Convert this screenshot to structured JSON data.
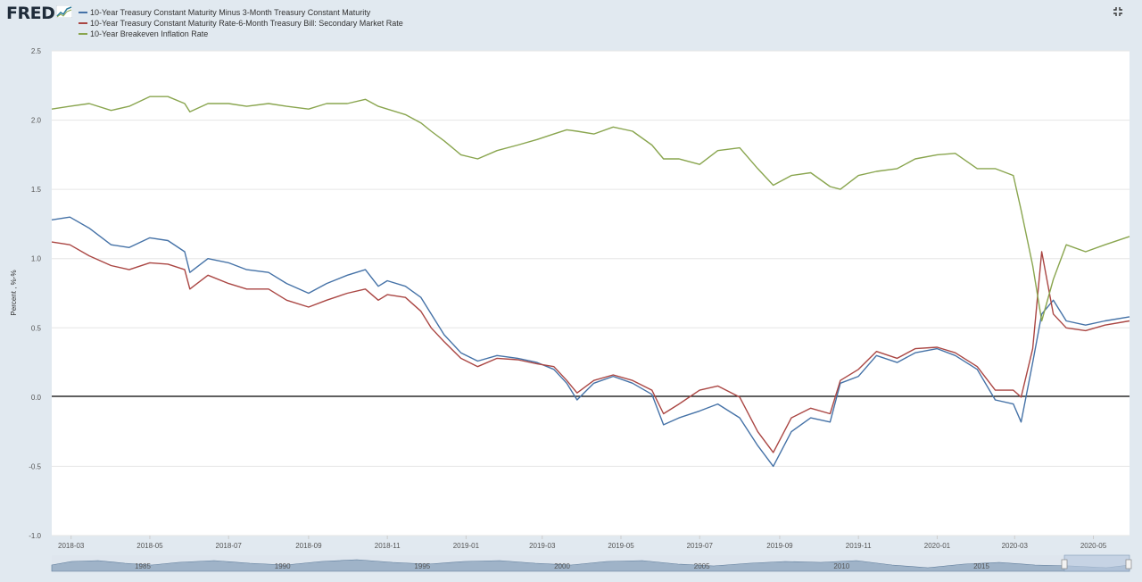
{
  "header": {
    "logo_text": "FRED",
    "logo_icon": "line-chart-icon",
    "expand_icon": "expand-icon"
  },
  "navigator": {
    "tick_labels": [
      "1985",
      "1990",
      "1995",
      "2000",
      "2005",
      "2010",
      "2015"
    ]
  },
  "chart_data": {
    "type": "line",
    "title": "",
    "xlabel": "",
    "ylabel": "Percent , %-%",
    "ylim": [
      -1.0,
      2.5
    ],
    "y_ticks": [
      "2.5",
      "2.0",
      "1.5",
      "1.0",
      "0.5",
      "0.0",
      "-0.5",
      "-1.0"
    ],
    "x_ticks": [
      "2018-03",
      "2018-05",
      "2018-07",
      "2018-09",
      "2018-11",
      "2019-01",
      "2019-03",
      "2019-05",
      "2019-07",
      "2019-09",
      "2019-11",
      "2020-01",
      "2020-03",
      "2020-05"
    ],
    "x_range": [
      "2018-02-14",
      "2020-05-29"
    ],
    "grid": true,
    "legend_position": "top-left",
    "series": [
      {
        "name": "10-Year Treasury Constant Maturity Minus 3-Month Treasury Constant Maturity",
        "color": "#4572a7",
        "points": [
          [
            "2018-02-14",
            1.28
          ],
          [
            "2018-02-28",
            1.3
          ],
          [
            "2018-03-15",
            1.22
          ],
          [
            "2018-04-01",
            1.1
          ],
          [
            "2018-04-15",
            1.08
          ],
          [
            "2018-05-01",
            1.15
          ],
          [
            "2018-05-15",
            1.13
          ],
          [
            "2018-05-28",
            1.05
          ],
          [
            "2018-06-01",
            0.9
          ],
          [
            "2018-06-15",
            1.0
          ],
          [
            "2018-07-01",
            0.97
          ],
          [
            "2018-07-15",
            0.92
          ],
          [
            "2018-08-01",
            0.9
          ],
          [
            "2018-08-15",
            0.82
          ],
          [
            "2018-09-01",
            0.75
          ],
          [
            "2018-09-15",
            0.82
          ],
          [
            "2018-10-01",
            0.88
          ],
          [
            "2018-10-15",
            0.92
          ],
          [
            "2018-10-25",
            0.8
          ],
          [
            "2018-11-01",
            0.84
          ],
          [
            "2018-11-15",
            0.8
          ],
          [
            "2018-11-27",
            0.72
          ],
          [
            "2018-12-05",
            0.6
          ],
          [
            "2018-12-15",
            0.45
          ],
          [
            "2018-12-28",
            0.32
          ],
          [
            "2019-01-10",
            0.26
          ],
          [
            "2019-01-25",
            0.3
          ],
          [
            "2019-02-10",
            0.28
          ],
          [
            "2019-02-25",
            0.25
          ],
          [
            "2019-03-10",
            0.2
          ],
          [
            "2019-03-20",
            0.1
          ],
          [
            "2019-03-28",
            -0.02
          ],
          [
            "2019-04-10",
            0.1
          ],
          [
            "2019-04-25",
            0.15
          ],
          [
            "2019-05-10",
            0.1
          ],
          [
            "2019-05-25",
            0.02
          ],
          [
            "2019-06-03",
            -0.2
          ],
          [
            "2019-06-15",
            -0.15
          ],
          [
            "2019-07-01",
            -0.1
          ],
          [
            "2019-07-15",
            -0.05
          ],
          [
            "2019-08-01",
            -0.15
          ],
          [
            "2019-08-15",
            -0.35
          ],
          [
            "2019-08-27",
            -0.5
          ],
          [
            "2019-09-10",
            -0.25
          ],
          [
            "2019-09-25",
            -0.15
          ],
          [
            "2019-10-10",
            -0.18
          ],
          [
            "2019-10-18",
            0.1
          ],
          [
            "2019-11-01",
            0.15
          ],
          [
            "2019-11-15",
            0.3
          ],
          [
            "2019-12-01",
            0.25
          ],
          [
            "2019-12-15",
            0.32
          ],
          [
            "2020-01-01",
            0.35
          ],
          [
            "2020-01-15",
            0.3
          ],
          [
            "2020-02-01",
            0.2
          ],
          [
            "2020-02-15",
            -0.02
          ],
          [
            "2020-02-29",
            -0.05
          ],
          [
            "2020-03-06",
            -0.18
          ],
          [
            "2020-03-15",
            0.25
          ],
          [
            "2020-03-22",
            0.6
          ],
          [
            "2020-03-31",
            0.7
          ],
          [
            "2020-04-10",
            0.55
          ],
          [
            "2020-04-25",
            0.52
          ],
          [
            "2020-05-10",
            0.55
          ],
          [
            "2020-05-29",
            0.58
          ]
        ]
      },
      {
        "name": "10-Year Treasury Constant Maturity Rate-6-Month Treasury Bill: Secondary Market Rate",
        "color": "#aa4643",
        "points": [
          [
            "2018-02-14",
            1.12
          ],
          [
            "2018-02-28",
            1.1
          ],
          [
            "2018-03-15",
            1.02
          ],
          [
            "2018-04-01",
            0.95
          ],
          [
            "2018-04-15",
            0.92
          ],
          [
            "2018-05-01",
            0.97
          ],
          [
            "2018-05-15",
            0.96
          ],
          [
            "2018-05-28",
            0.92
          ],
          [
            "2018-06-01",
            0.78
          ],
          [
            "2018-06-15",
            0.88
          ],
          [
            "2018-07-01",
            0.82
          ],
          [
            "2018-07-15",
            0.78
          ],
          [
            "2018-08-01",
            0.78
          ],
          [
            "2018-08-15",
            0.7
          ],
          [
            "2018-09-01",
            0.65
          ],
          [
            "2018-09-15",
            0.7
          ],
          [
            "2018-10-01",
            0.75
          ],
          [
            "2018-10-15",
            0.78
          ],
          [
            "2018-10-25",
            0.7
          ],
          [
            "2018-11-01",
            0.74
          ],
          [
            "2018-11-15",
            0.72
          ],
          [
            "2018-11-27",
            0.62
          ],
          [
            "2018-12-05",
            0.5
          ],
          [
            "2018-12-15",
            0.4
          ],
          [
            "2018-12-28",
            0.28
          ],
          [
            "2019-01-10",
            0.22
          ],
          [
            "2019-01-25",
            0.28
          ],
          [
            "2019-02-10",
            0.27
          ],
          [
            "2019-02-25",
            0.24
          ],
          [
            "2019-03-10",
            0.22
          ],
          [
            "2019-03-20",
            0.12
          ],
          [
            "2019-03-28",
            0.03
          ],
          [
            "2019-04-10",
            0.12
          ],
          [
            "2019-04-25",
            0.16
          ],
          [
            "2019-05-10",
            0.12
          ],
          [
            "2019-05-25",
            0.05
          ],
          [
            "2019-06-03",
            -0.12
          ],
          [
            "2019-06-15",
            -0.05
          ],
          [
            "2019-07-01",
            0.05
          ],
          [
            "2019-07-15",
            0.08
          ],
          [
            "2019-08-01",
            0.0
          ],
          [
            "2019-08-15",
            -0.25
          ],
          [
            "2019-08-27",
            -0.4
          ],
          [
            "2019-09-10",
            -0.15
          ],
          [
            "2019-09-25",
            -0.08
          ],
          [
            "2019-10-10",
            -0.12
          ],
          [
            "2019-10-18",
            0.12
          ],
          [
            "2019-11-01",
            0.2
          ],
          [
            "2019-11-15",
            0.33
          ],
          [
            "2019-12-01",
            0.28
          ],
          [
            "2019-12-15",
            0.35
          ],
          [
            "2020-01-01",
            0.36
          ],
          [
            "2020-01-15",
            0.32
          ],
          [
            "2020-02-01",
            0.22
          ],
          [
            "2020-02-15",
            0.05
          ],
          [
            "2020-02-29",
            0.05
          ],
          [
            "2020-03-06",
            0.0
          ],
          [
            "2020-03-15",
            0.35
          ],
          [
            "2020-03-22",
            1.05
          ],
          [
            "2020-03-31",
            0.6
          ],
          [
            "2020-04-10",
            0.5
          ],
          [
            "2020-04-25",
            0.48
          ],
          [
            "2020-05-10",
            0.52
          ],
          [
            "2020-05-29",
            0.55
          ]
        ]
      },
      {
        "name": "10-Year Breakeven Inflation Rate",
        "color": "#89a54e",
        "points": [
          [
            "2018-02-14",
            2.08
          ],
          [
            "2018-02-28",
            2.1
          ],
          [
            "2018-03-15",
            2.12
          ],
          [
            "2018-04-01",
            2.07
          ],
          [
            "2018-04-15",
            2.1
          ],
          [
            "2018-05-01",
            2.17
          ],
          [
            "2018-05-15",
            2.17
          ],
          [
            "2018-05-28",
            2.12
          ],
          [
            "2018-06-01",
            2.06
          ],
          [
            "2018-06-15",
            2.12
          ],
          [
            "2018-07-01",
            2.12
          ],
          [
            "2018-07-15",
            2.1
          ],
          [
            "2018-08-01",
            2.12
          ],
          [
            "2018-08-15",
            2.1
          ],
          [
            "2018-09-01",
            2.08
          ],
          [
            "2018-09-15",
            2.12
          ],
          [
            "2018-10-01",
            2.12
          ],
          [
            "2018-10-15",
            2.15
          ],
          [
            "2018-10-25",
            2.1
          ],
          [
            "2018-11-01",
            2.08
          ],
          [
            "2018-11-15",
            2.04
          ],
          [
            "2018-11-27",
            1.98
          ],
          [
            "2018-12-05",
            1.92
          ],
          [
            "2018-12-15",
            1.85
          ],
          [
            "2018-12-28",
            1.75
          ],
          [
            "2019-01-10",
            1.72
          ],
          [
            "2019-01-25",
            1.78
          ],
          [
            "2019-02-10",
            1.82
          ],
          [
            "2019-02-25",
            1.86
          ],
          [
            "2019-03-10",
            1.9
          ],
          [
            "2019-03-20",
            1.93
          ],
          [
            "2019-03-28",
            1.92
          ],
          [
            "2019-04-10",
            1.9
          ],
          [
            "2019-04-25",
            1.95
          ],
          [
            "2019-05-10",
            1.92
          ],
          [
            "2019-05-25",
            1.82
          ],
          [
            "2019-06-03",
            1.72
          ],
          [
            "2019-06-15",
            1.72
          ],
          [
            "2019-07-01",
            1.68
          ],
          [
            "2019-07-15",
            1.78
          ],
          [
            "2019-08-01",
            1.8
          ],
          [
            "2019-08-15",
            1.65
          ],
          [
            "2019-08-27",
            1.53
          ],
          [
            "2019-09-10",
            1.6
          ],
          [
            "2019-09-25",
            1.62
          ],
          [
            "2019-10-10",
            1.52
          ],
          [
            "2019-10-18",
            1.5
          ],
          [
            "2019-11-01",
            1.6
          ],
          [
            "2019-11-15",
            1.63
          ],
          [
            "2019-12-01",
            1.65
          ],
          [
            "2019-12-15",
            1.72
          ],
          [
            "2020-01-01",
            1.75
          ],
          [
            "2020-01-15",
            1.76
          ],
          [
            "2020-02-01",
            1.65
          ],
          [
            "2020-02-15",
            1.65
          ],
          [
            "2020-02-29",
            1.6
          ],
          [
            "2020-03-06",
            1.35
          ],
          [
            "2020-03-15",
            0.95
          ],
          [
            "2020-03-22",
            0.55
          ],
          [
            "2020-03-31",
            0.85
          ],
          [
            "2020-04-10",
            1.1
          ],
          [
            "2020-04-25",
            1.05
          ],
          [
            "2020-05-10",
            1.1
          ],
          [
            "2020-05-29",
            1.16
          ]
        ]
      }
    ]
  }
}
